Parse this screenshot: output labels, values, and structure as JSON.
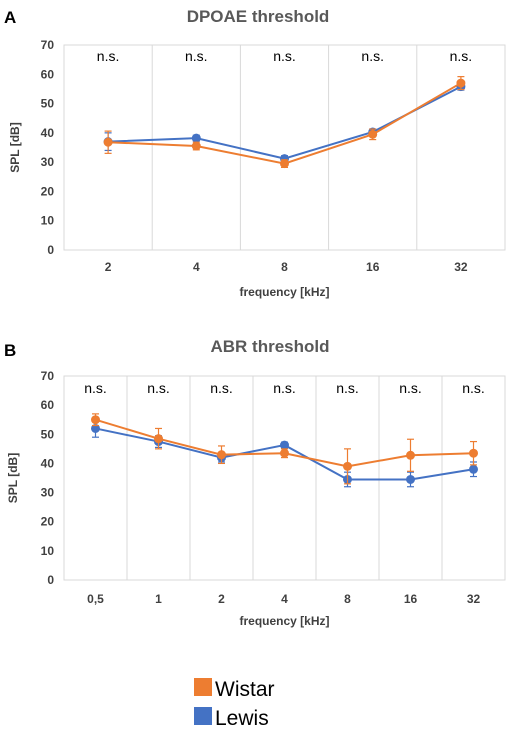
{
  "panels": {
    "a": {
      "letter": "A"
    },
    "b": {
      "letter": "B"
    }
  },
  "legend": {
    "items": [
      {
        "name": "Wistar",
        "color": "#ED7D31"
      },
      {
        "name": "Lewis",
        "color": "#4472C4"
      }
    ]
  },
  "chart_data": [
    {
      "type": "line",
      "title": "DPOAE threshold",
      "xlabel": "frequency [kHz]",
      "ylabel": "SPL [dB]",
      "ylim": [
        0,
        70
      ],
      "yticks": [
        "0",
        "10",
        "20",
        "30",
        "40",
        "50",
        "60",
        "70"
      ],
      "categories": [
        "2",
        "4",
        "8",
        "16",
        "32"
      ],
      "grid": "vertical category separators",
      "annotations": [
        "n.s.",
        "n.s.",
        "n.s.",
        "n.s.",
        "n.s."
      ],
      "series": [
        {
          "name": "Wistar",
          "color": "#ED7D31",
          "values": [
            36.8,
            35.5,
            29.5,
            39.5,
            57.0
          ],
          "errors": [
            3.8,
            1.3,
            1.3,
            1.8,
            2.2
          ]
        },
        {
          "name": "Lewis",
          "color": "#4472C4",
          "values": [
            37.0,
            38.2,
            31.2,
            40.3,
            55.8
          ],
          "errors": [
            3.0,
            1.0,
            1.0,
            1.0,
            1.2
          ]
        }
      ]
    },
    {
      "type": "line",
      "title": "ABR threshold",
      "xlabel": "frequency [kHz]",
      "ylabel": "SPL  [dB]",
      "ylim": [
        0,
        70
      ],
      "yticks": [
        "0",
        "10",
        "20",
        "30",
        "40",
        "50",
        "60",
        "70"
      ],
      "categories": [
        "0,5",
        "1",
        "2",
        "4",
        "8",
        "16",
        "32"
      ],
      "grid": "vertical category separators",
      "annotations": [
        "n.s.",
        "n.s.",
        "n.s.",
        "n.s.",
        "n.s.",
        "n.s.",
        "n.s."
      ],
      "series": [
        {
          "name": "Wistar",
          "color": "#ED7D31",
          "values": [
            55.0,
            48.5,
            43.0,
            43.5,
            39.0,
            42.8,
            43.5
          ],
          "errors": [
            2.0,
            3.5,
            3.0,
            1.5,
            6.0,
            5.5,
            4.0
          ]
        },
        {
          "name": "Lewis",
          "color": "#4472C4",
          "values": [
            52.0,
            47.5,
            42.0,
            46.3,
            34.5,
            34.5,
            38.0
          ],
          "errors": [
            3.0,
            2.0,
            1.5,
            1.0,
            2.5,
            2.5,
            2.5
          ]
        }
      ]
    }
  ]
}
